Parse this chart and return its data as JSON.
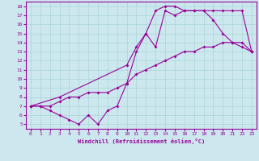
{
  "xlabel": "Windchill (Refroidissement éolien,°C)",
  "bg_color": "#cce8ee",
  "line_color": "#990099",
  "grid_color": "#aad4d8",
  "xlim": [
    -0.5,
    23.5
  ],
  "ylim": [
    4.5,
    18.5
  ],
  "xticks": [
    0,
    1,
    2,
    3,
    4,
    5,
    6,
    7,
    8,
    9,
    10,
    11,
    12,
    13,
    14,
    15,
    16,
    17,
    18,
    19,
    20,
    21,
    22,
    23
  ],
  "yticks": [
    5,
    6,
    7,
    8,
    9,
    10,
    11,
    12,
    13,
    14,
    15,
    16,
    17,
    18
  ],
  "line1_x": [
    0,
    1,
    2,
    3,
    4,
    5,
    6,
    7,
    8,
    9,
    10,
    11,
    12,
    13,
    14,
    15,
    16,
    17,
    18,
    19,
    20,
    21,
    22,
    23
  ],
  "line1_y": [
    7.0,
    7.0,
    7.0,
    7.5,
    8.0,
    8.0,
    8.5,
    8.5,
    8.5,
    9.0,
    9.5,
    10.5,
    11.0,
    11.5,
    12.0,
    12.5,
    13.0,
    13.0,
    13.5,
    13.5,
    14.0,
    14.0,
    14.0,
    13.0
  ],
  "line2_x": [
    0,
    1,
    2,
    3,
    4,
    5,
    6,
    7,
    8,
    9,
    10,
    11,
    12,
    13,
    14,
    15,
    16,
    17,
    18,
    19,
    20,
    21,
    22,
    23
  ],
  "line2_y": [
    7.0,
    7.0,
    6.5,
    6.0,
    5.5,
    5.0,
    6.0,
    5.0,
    6.5,
    7.0,
    9.5,
    13.0,
    15.0,
    13.5,
    17.5,
    17.0,
    17.5,
    17.5,
    17.5,
    16.5,
    15.0,
    14.0,
    13.5,
    13.0
  ],
  "line3_x": [
    0,
    3,
    10,
    11,
    12,
    13,
    14,
    15,
    16,
    17,
    18,
    19,
    20,
    21,
    22,
    23
  ],
  "line3_y": [
    7.0,
    8.0,
    11.5,
    13.5,
    15.0,
    17.5,
    18.0,
    18.0,
    17.5,
    17.5,
    17.5,
    17.5,
    17.5,
    17.5,
    17.5,
    13.0
  ]
}
